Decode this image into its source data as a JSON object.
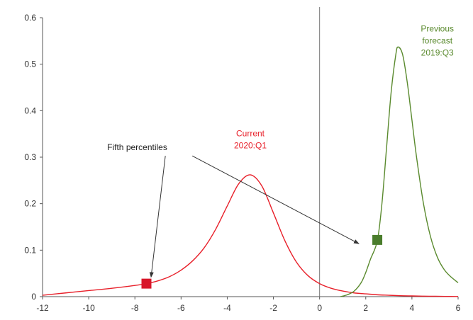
{
  "chart_data": {
    "type": "line",
    "title": "",
    "xlabel": "",
    "ylabel": "",
    "xlim": [
      -12,
      6
    ],
    "ylim": [
      0,
      0.6
    ],
    "x_ticks": [
      -12,
      -10,
      -8,
      -6,
      -4,
      -2,
      0,
      2,
      4,
      6
    ],
    "y_ticks": [
      0,
      0.1,
      0.2,
      0.3,
      0.4,
      0.5,
      0.6
    ],
    "y_tick_labels": [
      "0",
      "0.1",
      "0.2",
      "0.3",
      "0.4",
      "0.5",
      "0.6"
    ],
    "grid": false,
    "vertical_reference_line_x": 0,
    "series": [
      {
        "name": "Current 2020:Q1",
        "label_lines": [
          "Current",
          "2020:Q1"
        ],
        "color": "#e8202a",
        "x": [
          -12,
          -11,
          -10,
          -9,
          -8,
          -7.5,
          -7,
          -6.5,
          -6,
          -5.5,
          -5,
          -4.5,
          -4,
          -3.5,
          -3,
          -2.5,
          -2,
          -1.5,
          -1,
          -0.5,
          0,
          0.5,
          1,
          1.5,
          2,
          2.5,
          3,
          3.5,
          4,
          4.5,
          5,
          5.5,
          6
        ],
        "y": [
          0.003,
          0.008,
          0.013,
          0.018,
          0.024,
          0.028,
          0.034,
          0.043,
          0.057,
          0.077,
          0.105,
          0.145,
          0.195,
          0.243,
          0.262,
          0.238,
          0.18,
          0.12,
          0.074,
          0.045,
          0.028,
          0.018,
          0.012,
          0.008,
          0.006,
          0.004,
          0.003,
          0.002,
          0.0015,
          0.001,
          0.0008,
          0.0005,
          0.0003
        ]
      },
      {
        "name": "Previous forecast 2019:Q3",
        "label_lines": [
          "Previous",
          "forecast",
          "2019:Q3"
        ],
        "color": "#5a8a2e",
        "x": [
          0.9,
          1.2,
          1.5,
          1.8,
          2.0,
          2.2,
          2.5,
          2.7,
          2.9,
          3.1,
          3.3,
          3.4,
          3.6,
          3.8,
          4.0,
          4.2,
          4.5,
          4.8,
          5.1,
          5.4,
          5.7,
          6.0
        ],
        "y": [
          0.0,
          0.004,
          0.012,
          0.03,
          0.052,
          0.08,
          0.12,
          0.2,
          0.32,
          0.44,
          0.52,
          0.537,
          0.52,
          0.46,
          0.38,
          0.3,
          0.2,
          0.13,
          0.085,
          0.058,
          0.042,
          0.03
        ]
      }
    ],
    "markers": [
      {
        "series": "Current 2020:Q1",
        "x": -7.5,
        "y": 0.028,
        "color": "#d8162a"
      },
      {
        "series": "Previous forecast 2019:Q3",
        "x": 2.5,
        "y": 0.122,
        "color": "#4a7d2c"
      }
    ],
    "annotations": [
      {
        "text": "Fifth percentiles",
        "anchor": {
          "x": -9.2,
          "y": 0.315
        },
        "arrows_to": [
          {
            "x": -7.3,
            "y": 0.042
          },
          {
            "x": 1.7,
            "y": 0.114
          }
        ]
      }
    ]
  }
}
